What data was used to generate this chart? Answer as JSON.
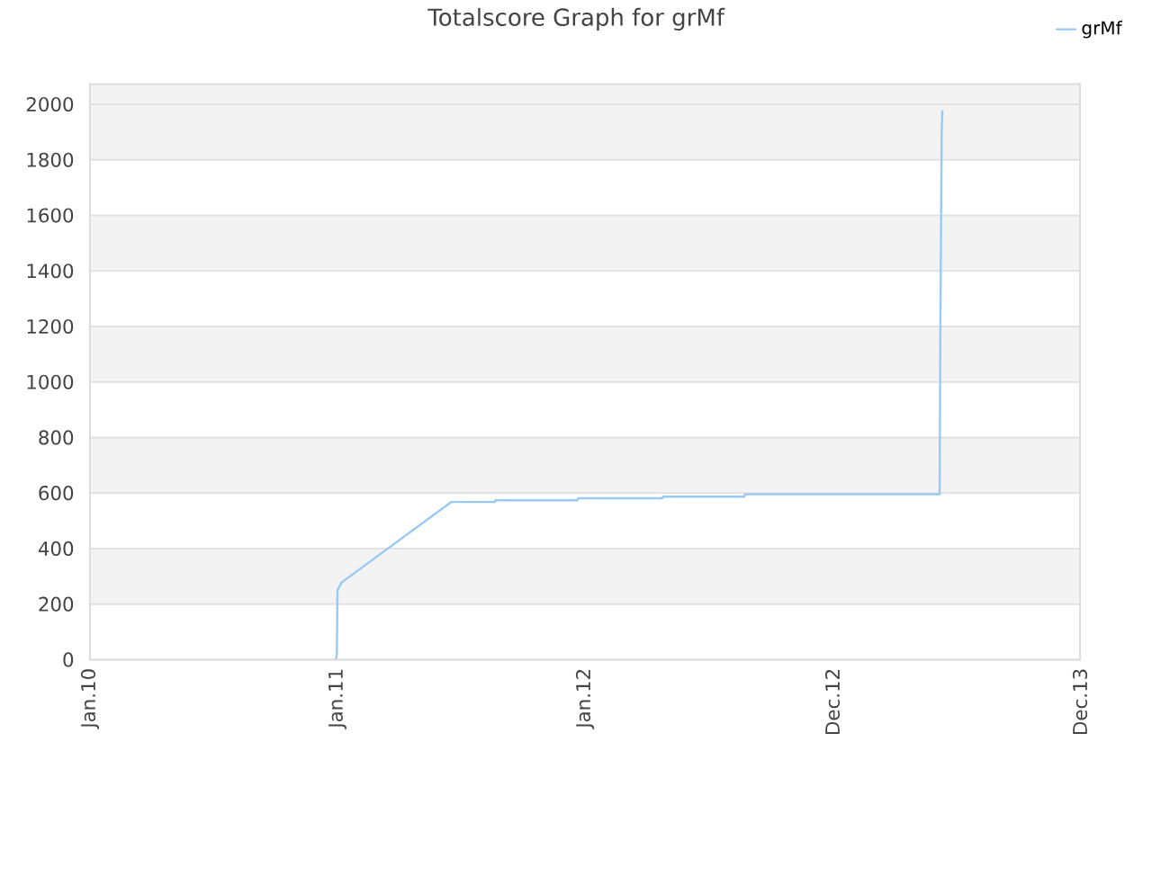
{
  "chart_data": {
    "type": "line",
    "title": "Totalscore Graph for grMf",
    "x": [
      "2010-12-30",
      "2010-12-31",
      "2011-01-01",
      "2011-01-07",
      "2011-06-18",
      "2011-08-21",
      "2011-08-22",
      "2011-12-21",
      "2011-12-22",
      "2012-04-24",
      "2012-04-25",
      "2012-08-23",
      "2012-08-24",
      "2013-06-07",
      "2013-06-08",
      "2013-06-10",
      "2013-06-11"
    ],
    "series": [
      {
        "name": "grMf",
        "color": "#99c9f5",
        "values": [
          5,
          20,
          250,
          278,
          568,
          568,
          574,
          574,
          581,
          581,
          587,
          587,
          596,
          596,
          1165,
          1904,
          1975
        ]
      }
    ],
    "xlim": [
      "2010-01-01",
      "2013-12-31"
    ],
    "xticks": [
      {
        "value": "2010-01-01",
        "label": "Jan.10"
      },
      {
        "value": "2011-01-01",
        "label": "Jan.11"
      },
      {
        "value": "2012-01-01",
        "label": "Jan.12"
      },
      {
        "value": "2012-12-31",
        "label": "Dec.12"
      },
      {
        "value": "2013-12-31",
        "label": "Dec.13"
      }
    ],
    "ylim": [
      0,
      2073
    ],
    "yticks": [
      0,
      200,
      400,
      600,
      800,
      1000,
      1200,
      1400,
      1600,
      1800,
      2000
    ],
    "grid": "y",
    "legend": "top right",
    "line_style": "solid"
  }
}
